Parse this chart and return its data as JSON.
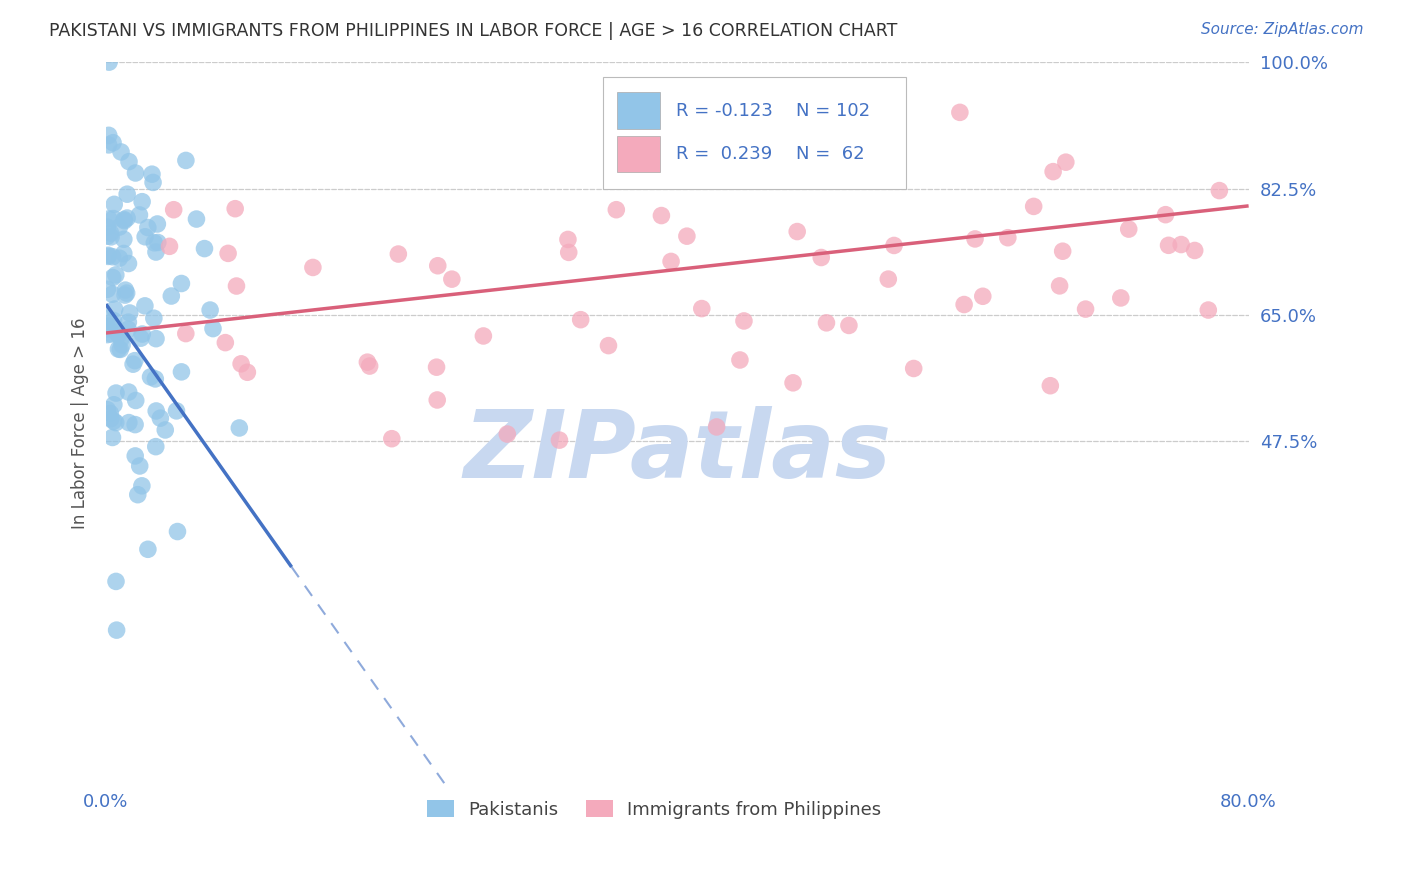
{
  "title": "PAKISTANI VS IMMIGRANTS FROM PHILIPPINES IN LABOR FORCE | AGE > 16 CORRELATION CHART",
  "source": "Source: ZipAtlas.com",
  "ylabel": "In Labor Force | Age > 16",
  "xlim": [
    0.0,
    0.8
  ],
  "ylim": [
    0.0,
    1.0
  ],
  "ytick_vals": [
    0.475,
    0.65,
    0.825,
    1.0
  ],
  "ytick_labels": [
    "47.5%",
    "65.0%",
    "82.5%",
    "100.0%"
  ],
  "xtick_vals": [
    0.0,
    0.2,
    0.4,
    0.6,
    0.8
  ],
  "xtick_labels": [
    "0.0%",
    "",
    "",
    "",
    "80.0%"
  ],
  "pakistani_R": -0.123,
  "pakistani_N": 102,
  "philippines_R": 0.239,
  "philippines_N": 62,
  "blue_dot_color": "#92C5E8",
  "pink_dot_color": "#F4AABC",
  "blue_line_color": "#4472C4",
  "pink_line_color": "#D9607A",
  "axis_label_color": "#4472C4",
  "grid_color": "#CCCCCC",
  "background_color": "#FFFFFF",
  "watermark_text": "ZIPatlas",
  "watermark_color": "#C8D8F0",
  "legend_text_color": "#4472C4",
  "title_color": "#333333",
  "ylabel_color": "#555555",
  "dot_size": 160,
  "dot_alpha": 0.75,
  "pak_line_solid_end": 0.13,
  "blue_line_intercept": 0.665,
  "blue_line_slope": -2.8,
  "pink_line_intercept": 0.625,
  "pink_line_slope": 0.22
}
